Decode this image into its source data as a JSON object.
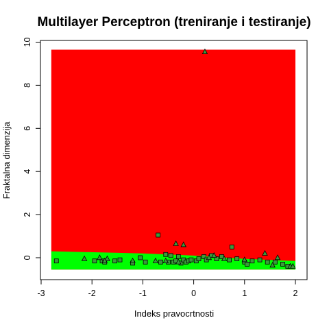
{
  "chart_data": {
    "type": "scatter",
    "title": "Multilayer Perceptron (treniranje i testiranje)",
    "xlabel": "Indeks pravocrtnosti",
    "ylabel": "Fraktalna dimenzija",
    "xlim": [
      -3.0,
      2.2
    ],
    "ylim": [
      -1.0,
      10.0
    ],
    "x_ticks": [
      -3,
      -2,
      -1,
      0,
      1,
      2
    ],
    "y_ticks": [
      0,
      2,
      4,
      6,
      8,
      10
    ],
    "decision_regions": {
      "x_range": [
        -2.8,
        2.0
      ],
      "y_top": 9.65,
      "upper_region_color": "#ff0000",
      "lower_region_color": "#00ff00",
      "lower_region_bottom": -0.55,
      "boundary": [
        {
          "x": -2.8,
          "y": 0.3
        },
        {
          "x": -1.0,
          "y": 0.2
        },
        {
          "x": 0.0,
          "y": 0.1
        },
        {
          "x": 1.0,
          "y": -0.05
        },
        {
          "x": 2.0,
          "y": -0.15
        }
      ]
    },
    "series": [
      {
        "marker": "square",
        "points": [
          [
            -2.7,
            -0.15
          ],
          [
            -1.95,
            -0.15
          ],
          [
            -1.8,
            -0.15
          ],
          [
            -1.75,
            -0.2
          ],
          [
            -1.55,
            -0.15
          ],
          [
            -1.45,
            -0.1
          ],
          [
            -1.2,
            -0.25
          ],
          [
            -1.05,
            0.0
          ],
          [
            -0.95,
            -0.2
          ],
          [
            -0.7,
            1.05
          ],
          [
            -0.65,
            -0.2
          ],
          [
            -0.55,
            0.15
          ],
          [
            -0.5,
            -0.2
          ],
          [
            -0.45,
            0.1
          ],
          [
            -0.4,
            -0.2
          ],
          [
            -0.35,
            -0.15
          ],
          [
            -0.3,
            0.05
          ],
          [
            -0.25,
            -0.25
          ],
          [
            -0.2,
            -0.1
          ],
          [
            -0.15,
            -0.2
          ],
          [
            -0.1,
            -0.15
          ],
          [
            -0.05,
            -0.1
          ],
          [
            0.05,
            -0.15
          ],
          [
            0.1,
            -0.05
          ],
          [
            0.2,
            0.05
          ],
          [
            0.25,
            -0.1
          ],
          [
            0.35,
            0.1
          ],
          [
            0.45,
            -0.05
          ],
          [
            0.55,
            0.05
          ],
          [
            0.7,
            -0.1
          ],
          [
            0.75,
            0.5
          ],
          [
            0.85,
            -0.05
          ],
          [
            1.0,
            -0.2
          ],
          [
            1.05,
            -0.3
          ],
          [
            1.15,
            -0.15
          ],
          [
            1.3,
            -0.1
          ],
          [
            1.45,
            -0.2
          ],
          [
            1.6,
            -0.2
          ],
          [
            1.75,
            -0.3
          ],
          [
            1.85,
            -0.4
          ]
        ]
      },
      {
        "marker": "triangle",
        "points": [
          [
            0.22,
            9.55
          ],
          [
            -2.15,
            -0.05
          ],
          [
            -1.85,
            0.0
          ],
          [
            -1.7,
            -0.05
          ],
          [
            -1.75,
            -0.15
          ],
          [
            -1.2,
            -0.15
          ],
          [
            -0.75,
            -0.15
          ],
          [
            -0.55,
            -0.15
          ],
          [
            -0.35,
            0.65
          ],
          [
            -0.2,
            0.6
          ],
          [
            -0.3,
            -0.2
          ],
          [
            0.3,
            0.0
          ],
          [
            0.4,
            0.1
          ],
          [
            0.6,
            -0.05
          ],
          [
            1.0,
            -0.1
          ],
          [
            1.4,
            0.2
          ],
          [
            1.55,
            -0.35
          ],
          [
            1.65,
            0.0
          ],
          [
            1.9,
            -0.4
          ],
          [
            1.95,
            -0.4
          ]
        ]
      }
    ],
    "colors": {
      "marker_fill": "#3c9a3c",
      "marker_stroke": "#000000"
    }
  }
}
